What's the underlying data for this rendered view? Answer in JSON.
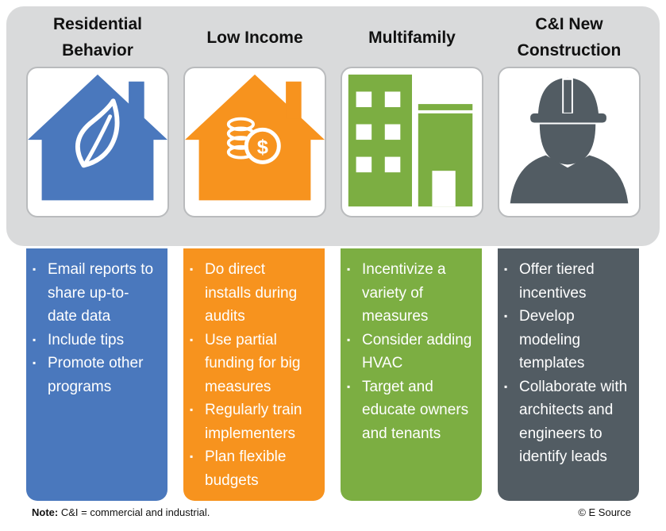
{
  "columns": [
    {
      "title": "Residential\nBehavior",
      "icon": "house-leaf-icon",
      "color": "#4a78bd",
      "bullets": [
        "Email reports to share up-to-date data",
        "Include tips",
        "Promote other programs"
      ]
    },
    {
      "title": "Low Income",
      "icon": "house-coins-icon",
      "color": "#f7931e",
      "bullets": [
        "Do direct installs during audits",
        "Use partial funding for big measures",
        "Regularly train implementers",
        "Plan flexible budgets"
      ]
    },
    {
      "title": "Multifamily",
      "icon": "apartment-building-icon",
      "color": "#7cae42",
      "bullets": [
        "Incentivize a variety of measures",
        "Consider adding HVAC",
        "Target and educate owners and tenants"
      ]
    },
    {
      "title": "C&I New\nConstruction",
      "icon": "hard-hat-worker-icon",
      "color": "#525c63",
      "bullets": [
        "Offer tiered incentives",
        "Develop modeling templates",
        "Collaborate with architects and engineers to identify leads"
      ]
    }
  ],
  "footer": {
    "note_label": "Note:",
    "note_text": " C&I = commercial and industrial.",
    "copyright": "© E Source"
  }
}
